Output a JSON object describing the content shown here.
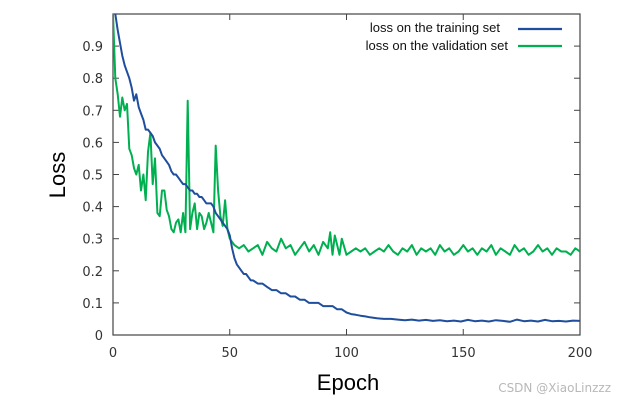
{
  "chart_data": {
    "type": "line",
    "title": "",
    "xlabel": "Epoch",
    "ylabel": "Loss",
    "xlim": [
      0,
      200
    ],
    "ylim": [
      0,
      1.0
    ],
    "xticks": [
      0,
      50,
      100,
      150,
      200
    ],
    "xtick_labels": [
      "0",
      "50",
      "100",
      "150",
      "200"
    ],
    "yticks": [
      0,
      0.1,
      0.2,
      0.3,
      0.4,
      0.5,
      0.6,
      0.7,
      0.8,
      0.9
    ],
    "ytick_labels": [
      "0",
      "0.1",
      "0.2",
      "0.3",
      "0.4",
      "0.5",
      "0.6",
      "0.7",
      "0.8",
      "0.9"
    ],
    "grid": false,
    "legend_position": "top-right",
    "series": [
      {
        "name": "loss on the training set",
        "color": "#1f4e9c",
        "x": [
          1,
          2,
          3,
          4,
          5,
          6,
          7,
          8,
          9,
          10,
          11,
          12,
          13,
          14,
          15,
          16,
          17,
          18,
          19,
          20,
          21,
          22,
          23,
          24,
          25,
          26,
          27,
          28,
          29,
          30,
          31,
          32,
          33,
          34,
          35,
          36,
          37,
          38,
          39,
          40,
          41,
          42,
          43,
          44,
          45,
          46,
          47,
          48,
          49,
          50,
          51,
          52,
          53,
          54,
          55,
          56,
          57,
          58,
          59,
          60,
          62,
          64,
          66,
          68,
          70,
          72,
          74,
          76,
          78,
          80,
          82,
          84,
          86,
          88,
          90,
          92,
          94,
          96,
          98,
          100,
          102,
          104,
          106,
          108,
          110,
          113,
          116,
          119,
          122,
          125,
          128,
          131,
          134,
          137,
          140,
          143,
          146,
          149,
          152,
          155,
          158,
          161,
          164,
          167,
          170,
          173,
          176,
          179,
          182,
          185,
          188,
          191,
          194,
          197,
          200
        ],
        "y": [
          1.0,
          0.95,
          0.91,
          0.87,
          0.84,
          0.82,
          0.8,
          0.77,
          0.73,
          0.75,
          0.71,
          0.69,
          0.67,
          0.64,
          0.64,
          0.63,
          0.62,
          0.6,
          0.59,
          0.58,
          0.56,
          0.55,
          0.54,
          0.53,
          0.51,
          0.5,
          0.5,
          0.49,
          0.48,
          0.47,
          0.47,
          0.46,
          0.45,
          0.45,
          0.44,
          0.44,
          0.43,
          0.43,
          0.42,
          0.41,
          0.41,
          0.41,
          0.4,
          0.38,
          0.37,
          0.36,
          0.35,
          0.34,
          0.33,
          0.31,
          0.27,
          0.24,
          0.22,
          0.21,
          0.2,
          0.19,
          0.19,
          0.18,
          0.17,
          0.17,
          0.16,
          0.16,
          0.15,
          0.14,
          0.14,
          0.13,
          0.13,
          0.12,
          0.12,
          0.11,
          0.11,
          0.1,
          0.1,
          0.1,
          0.09,
          0.09,
          0.09,
          0.08,
          0.08,
          0.07,
          0.065,
          0.063,
          0.06,
          0.058,
          0.055,
          0.052,
          0.05,
          0.05,
          0.048,
          0.046,
          0.048,
          0.045,
          0.047,
          0.044,
          0.046,
          0.043,
          0.045,
          0.042,
          0.047,
          0.043,
          0.045,
          0.042,
          0.046,
          0.044,
          0.041,
          0.048,
          0.043,
          0.045,
          0.042,
          0.047,
          0.043,
          0.044,
          0.042,
          0.045,
          0.044
        ]
      },
      {
        "name": "loss on the validation set",
        "color": "#00b050",
        "x": [
          0,
          1,
          2,
          3,
          4,
          5,
          6,
          7,
          8,
          9,
          10,
          11,
          12,
          13,
          14,
          15,
          16,
          17,
          18,
          19,
          20,
          21,
          22,
          23,
          24,
          25,
          26,
          27,
          28,
          29,
          30,
          31,
          32,
          33,
          34,
          35,
          36,
          37,
          38,
          39,
          40,
          41,
          42,
          43,
          44,
          45,
          46,
          47,
          48,
          49,
          50,
          51,
          52,
          54,
          56,
          58,
          60,
          62,
          64,
          66,
          68,
          70,
          72,
          74,
          76,
          78,
          80,
          82,
          84,
          86,
          88,
          90,
          92,
          93,
          94,
          95,
          96,
          97,
          98,
          100,
          102,
          104,
          106,
          108,
          110,
          112,
          114,
          116,
          118,
          120,
          122,
          124,
          126,
          128,
          130,
          132,
          134,
          136,
          138,
          140,
          142,
          144,
          146,
          148,
          150,
          152,
          154,
          156,
          158,
          160,
          162,
          164,
          166,
          168,
          170,
          172,
          174,
          176,
          178,
          180,
          182,
          184,
          186,
          188,
          190,
          192,
          194,
          196,
          198,
          200
        ],
        "y": [
          1.0,
          0.8,
          0.75,
          0.68,
          0.74,
          0.7,
          0.72,
          0.58,
          0.56,
          0.52,
          0.5,
          0.53,
          0.45,
          0.5,
          0.42,
          0.57,
          0.63,
          0.47,
          0.55,
          0.38,
          0.37,
          0.45,
          0.45,
          0.39,
          0.37,
          0.33,
          0.32,
          0.35,
          0.36,
          0.32,
          0.38,
          0.32,
          0.73,
          0.33,
          0.38,
          0.41,
          0.33,
          0.38,
          0.37,
          0.33,
          0.35,
          0.38,
          0.35,
          0.32,
          0.59,
          0.45,
          0.37,
          0.34,
          0.42,
          0.33,
          0.3,
          0.29,
          0.28,
          0.27,
          0.28,
          0.26,
          0.27,
          0.28,
          0.25,
          0.29,
          0.27,
          0.26,
          0.3,
          0.27,
          0.28,
          0.25,
          0.27,
          0.29,
          0.26,
          0.28,
          0.25,
          0.29,
          0.27,
          0.32,
          0.25,
          0.31,
          0.28,
          0.25,
          0.3,
          0.25,
          0.26,
          0.27,
          0.26,
          0.27,
          0.25,
          0.26,
          0.27,
          0.26,
          0.28,
          0.26,
          0.25,
          0.27,
          0.26,
          0.28,
          0.25,
          0.27,
          0.26,
          0.27,
          0.25,
          0.28,
          0.26,
          0.27,
          0.25,
          0.26,
          0.28,
          0.26,
          0.27,
          0.25,
          0.27,
          0.26,
          0.28,
          0.25,
          0.27,
          0.26,
          0.25,
          0.28,
          0.26,
          0.27,
          0.25,
          0.26,
          0.28,
          0.26,
          0.27,
          0.25,
          0.27,
          0.26,
          0.26,
          0.25,
          0.27,
          0.26
        ]
      }
    ]
  },
  "watermark": "CSDN @XiaoLinzzz"
}
